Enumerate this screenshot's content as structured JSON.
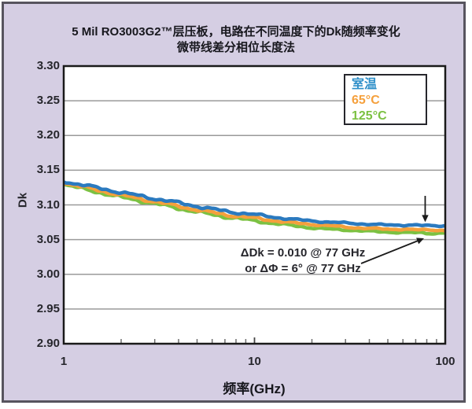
{
  "title": {
    "line1": "5 Mil RO3003G2™层压板，电路在不同温度下的Dk随频率变化",
    "line2": "微带线差分相位长度法"
  },
  "axes": {
    "y_label": "Dk",
    "x_label": "频率(GHz)",
    "y_ticks": [
      "3.30",
      "3.25",
      "3.20",
      "3.15",
      "3.10",
      "3.05",
      "3.00",
      "2.95",
      "2.90"
    ],
    "x_ticks": [
      "1",
      "10",
      "100"
    ]
  },
  "legend": {
    "entries": [
      {
        "label": "室温",
        "color": "#2e8fc9"
      },
      {
        "label": "65°C",
        "color": "#f5a03c"
      },
      {
        "label": "125°C",
        "color": "#7cc142"
      }
    ]
  },
  "annotation": {
    "line1": "ΔDk = 0.010 @ 77 GHz",
    "line2": "or ΔΦ = 6° @ 77 GHz"
  },
  "colors": {
    "background": "#d5cee3",
    "panel_border": "#57545e",
    "plot_background": "#ffffff",
    "plot_border": "#1a1a1a",
    "gridline": "#9a9a9a",
    "tick": "#6e6e6e",
    "text": "#26262c",
    "series_room": "#2b7abf",
    "series_65": "#f5a03c",
    "series_125": "#7cc142"
  },
  "chart_data": {
    "type": "line",
    "title": "5 Mil RO3003G2™层压板，电路在不同温度下的Dk随频率变化 微带线差分相位长度法",
    "xlabel": "频率(GHz)",
    "ylabel": "Dk",
    "xscale": "log",
    "xlim": [
      1,
      100
    ],
    "ylim": [
      2.9,
      3.3
    ],
    "ytick_step": 0.05,
    "grid": "horizontal",
    "legend_position": "top-right",
    "x": [
      1,
      1.3,
      1.6,
      2,
      2.5,
      3,
      4,
      5,
      6,
      7,
      8,
      10,
      13,
      16,
      20,
      25,
      30,
      40,
      50,
      60,
      70,
      77,
      80,
      90,
      100
    ],
    "series": [
      {
        "name": "室温",
        "color": "#2b7abf",
        "y": [
          3.134,
          3.128,
          3.123,
          3.118,
          3.113,
          3.109,
          3.103,
          3.098,
          3.094,
          3.091,
          3.089,
          3.086,
          3.082,
          3.079,
          3.077,
          3.075,
          3.074,
          3.072,
          3.071,
          3.071,
          3.071,
          3.07,
          3.07,
          3.07,
          3.07
        ]
      },
      {
        "name": "65°C",
        "color": "#f5a03c",
        "y": [
          3.132,
          3.125,
          3.12,
          3.114,
          3.109,
          3.105,
          3.098,
          3.093,
          3.089,
          3.086,
          3.084,
          3.081,
          3.077,
          3.074,
          3.072,
          3.07,
          3.068,
          3.066,
          3.065,
          3.065,
          3.064,
          3.064,
          3.064,
          3.064,
          3.063
        ]
      },
      {
        "name": "125°C",
        "color": "#7cc142",
        "y": [
          3.13,
          3.122,
          3.117,
          3.111,
          3.106,
          3.102,
          3.095,
          3.09,
          3.086,
          3.083,
          3.081,
          3.077,
          3.073,
          3.07,
          3.067,
          3.065,
          3.064,
          3.062,
          3.061,
          3.06,
          3.06,
          3.06,
          3.059,
          3.059,
          3.06
        ]
      }
    ],
    "annotations": [
      {
        "text": "ΔDk = 0.010 @ 77 GHz or ΔΦ = 6° @ 77 GHz",
        "at_ghz": 77
      }
    ]
  }
}
